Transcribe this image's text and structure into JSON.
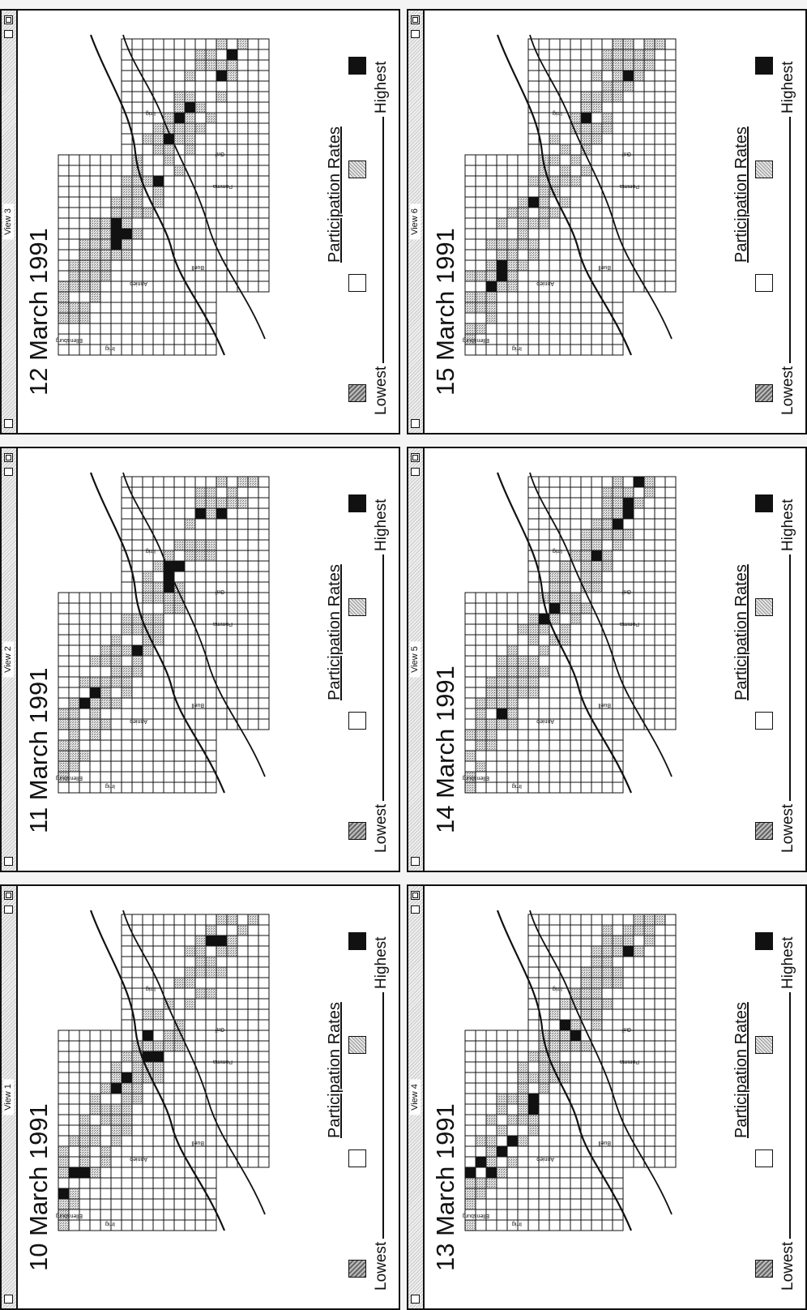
{
  "legend": {
    "title": "Participation Rates",
    "lowest": "Lowest",
    "highest": "Highest"
  },
  "colors": {
    "frame": "#111111",
    "high": "#111111",
    "mid_pattern": "#bdbdbd",
    "low": "#ffffff"
  },
  "map_places": [
    "Ellensburg",
    "Irrig",
    "Pomma",
    "Grif",
    "Annieb",
    "Buell",
    "Irrig"
  ],
  "views": [
    {
      "window_title": "View 1",
      "date": "10 March 1991"
    },
    {
      "window_title": "View 2",
      "date": "11 March 1991"
    },
    {
      "window_title": "View 3",
      "date": "12 March 1991"
    },
    {
      "window_title": "View 4",
      "date": "13 March 1991"
    },
    {
      "window_title": "View 5",
      "date": "14 March 1991"
    },
    {
      "window_title": "View 6",
      "date": "15 March 1991"
    }
  ]
}
